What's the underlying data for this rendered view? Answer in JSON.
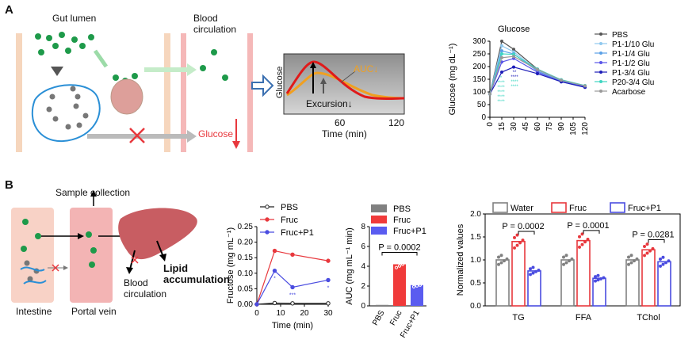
{
  "panel_a": {
    "letter": "A",
    "gut_lumen": "Gut lumen",
    "blood_circulation": "Blood\ncirculation",
    "glucose_label": "Glucose",
    "inset": {
      "ylabel": "Glucose",
      "xlabel": "Time (min)",
      "xticks": [
        "60",
        "120"
      ],
      "auc_label": "AUC↓",
      "excursion_label": "Excursion↓"
    }
  },
  "panel_b": {
    "letter": "B",
    "sample_collection": "Sample collection",
    "intestine": "Intestine",
    "portal_vein": "Portal vein",
    "blood_circulation": "Blood\ncirculation",
    "lipid_accumulation": "Lipid\naccumulation"
  },
  "colors": {
    "pbs": "#555555",
    "fruc": "#e8383d",
    "fruc_p1": "#4a4ce0",
    "green": "#1e9a4a",
    "water": "#808080"
  },
  "chart_data": [
    {
      "id": "glucose",
      "type": "line",
      "title": "Glucose",
      "ylabel": "Glucose (mg dL⁻¹)",
      "ylim": [
        0,
        300
      ],
      "yticks": [
        "0",
        "50",
        "100",
        "150",
        "200",
        "250",
        "300"
      ],
      "x": [
        0,
        15,
        30,
        60,
        90,
        120
      ],
      "xticks": [
        "0",
        "15",
        "30",
        "45",
        "60",
        "75",
        "90",
        "105",
        "120"
      ],
      "legend_position": "right",
      "series": [
        {
          "name": "PBS",
          "color": "#555555",
          "values": [
            92,
            300,
            268,
            190,
            145,
            120
          ]
        },
        {
          "name": "P1-1/10 Glu",
          "color": "#8fc8ee",
          "values": [
            92,
            282,
            258,
            185,
            145,
            122
          ]
        },
        {
          "name": "P1-1/4 Glu",
          "color": "#5aa0e6",
          "values": [
            92,
            262,
            250,
            182,
            143,
            122
          ]
        },
        {
          "name": "P1-1/2 Glu",
          "color": "#5a56e8",
          "values": [
            92,
            218,
            232,
            178,
            140,
            120
          ]
        },
        {
          "name": "P1-3/4 Glu",
          "color": "#1c1cb8",
          "values": [
            92,
            178,
            198,
            172,
            140,
            118
          ]
        },
        {
          "name": "P20-3/4 Glu",
          "color": "#3ed6c2",
          "values": [
            92,
            250,
            248,
            190,
            148,
            125
          ]
        },
        {
          "name": "Acarbose",
          "color": "#999999",
          "values": [
            92,
            235,
            240,
            188,
            146,
            124
          ]
        }
      ],
      "sig_15": [
        "*",
        "****",
        "****",
        "****",
        "****",
        "****"
      ],
      "sig_30": [
        "**",
        "****",
        "****",
        "****"
      ]
    },
    {
      "id": "fructose",
      "type": "line",
      "ylabel": "Fructose (mg mL⁻¹)",
      "xlabel": "Time (min)",
      "ylim": [
        0,
        0.25
      ],
      "yticks": [
        "0.00",
        "0.05",
        "0.10",
        "0.15",
        "0.20",
        "0.25"
      ],
      "x": [
        0,
        7.5,
        15,
        30
      ],
      "xticks": [
        "0",
        "10",
        "20",
        "30"
      ],
      "series": [
        {
          "name": "PBS",
          "color": "#222222",
          "values": [
            0.0,
            0.004,
            0.003,
            0.003
          ]
        },
        {
          "name": "Fruc",
          "color": "#e8383d",
          "values": [
            0.0,
            0.172,
            0.16,
            0.14
          ]
        },
        {
          "name": "Fruc+P1",
          "color": "#4a4ce0",
          "values": [
            0.0,
            0.108,
            0.055,
            0.078
          ]
        }
      ],
      "annotations": [
        "*",
        "***",
        "*"
      ]
    },
    {
      "id": "auc",
      "type": "bar",
      "ylabel": "AUC (mg mL⁻¹ min)",
      "ylim": [
        0,
        8
      ],
      "yticks": [
        "0",
        "2",
        "4",
        "6",
        "8"
      ],
      "categories": [
        "PBS",
        "Fruc",
        "Fruc+P1"
      ],
      "values": [
        0.1,
        4.2,
        2.1
      ],
      "colors": [
        "#808080",
        "#f03a3a",
        "#5a5cf0"
      ],
      "p_value": "P = 0.0002",
      "legend": [
        "PBS",
        "Fruc",
        "Fruc+P1"
      ]
    },
    {
      "id": "normalized",
      "type": "bar",
      "ylabel": "Normalized values",
      "ylim": [
        0,
        2.0
      ],
      "yticks": [
        "0.0",
        "0.5",
        "1.0",
        "1.5",
        "2.0"
      ],
      "categories": [
        "TG",
        "FFA",
        "TChol"
      ],
      "series": [
        {
          "name": "Water",
          "color": "#808080",
          "values": [
            1.0,
            1.0,
            1.0
          ]
        },
        {
          "name": "Fruc",
          "color": "#e8383d",
          "values": [
            1.4,
            1.42,
            1.22
          ]
        },
        {
          "name": "Fruc+P1",
          "color": "#4a4ce0",
          "values": [
            0.76,
            0.6,
            0.96
          ]
        }
      ],
      "p_values": [
        "P = 0.0002",
        "P = 0.0001",
        "P = 0.0281"
      ]
    }
  ]
}
